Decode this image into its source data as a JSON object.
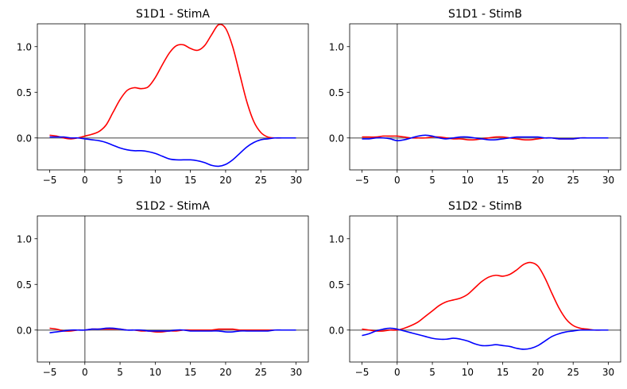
{
  "chart_data": [
    {
      "type": "line",
      "title": "S1D1 - StimA",
      "xlim": [
        -6.75,
        31.75
      ],
      "ylim": [
        -0.35,
        1.25
      ],
      "xticks": [
        -5,
        0,
        5,
        10,
        15,
        20,
        25,
        30
      ],
      "yticks": [
        0.0,
        0.5,
        1.0
      ],
      "xtick_labels": [
        "−5",
        "0",
        "5",
        "10",
        "15",
        "20",
        "25",
        "30"
      ],
      "ytick_labels": [
        "0.0",
        "0.5",
        "1.0"
      ],
      "reference_lines": {
        "vertical_x": 0,
        "horizontal_y": 0
      },
      "series": [
        {
          "color": "#ff0000",
          "x": [
            -5,
            -4,
            -3,
            -2,
            -1,
            0,
            1,
            2,
            3,
            4,
            5,
            6,
            7,
            8,
            9,
            10,
            11,
            12,
            13,
            14,
            15,
            16,
            17,
            18,
            19,
            20,
            21,
            22,
            23,
            24,
            25,
            26,
            27,
            28,
            29,
            30
          ],
          "y": [
            0.03,
            0.02,
            0.0,
            -0.01,
            0.0,
            0.02,
            0.04,
            0.07,
            0.14,
            0.28,
            0.42,
            0.52,
            0.55,
            0.54,
            0.56,
            0.66,
            0.8,
            0.93,
            1.01,
            1.02,
            0.98,
            0.96,
            1.01,
            1.13,
            1.24,
            1.2,
            1.0,
            0.7,
            0.4,
            0.18,
            0.06,
            0.01,
            0.0,
            0.0,
            0.0,
            0.0
          ]
        },
        {
          "color": "#0000ff",
          "x": [
            -5,
            -4,
            -3,
            -2,
            -1,
            0,
            1,
            2,
            3,
            4,
            5,
            6,
            7,
            8,
            9,
            10,
            11,
            12,
            13,
            14,
            15,
            16,
            17,
            18,
            19,
            20,
            21,
            22,
            23,
            24,
            25,
            26,
            27,
            28,
            29,
            30
          ],
          "y": [
            0.01,
            0.01,
            0.01,
            0.0,
            0.0,
            -0.01,
            -0.02,
            -0.03,
            -0.05,
            -0.08,
            -0.11,
            -0.13,
            -0.14,
            -0.14,
            -0.15,
            -0.17,
            -0.2,
            -0.23,
            -0.24,
            -0.24,
            -0.24,
            -0.25,
            -0.27,
            -0.3,
            -0.31,
            -0.29,
            -0.24,
            -0.17,
            -0.1,
            -0.05,
            -0.02,
            -0.01,
            0.0,
            0.0,
            0.0,
            0.0
          ]
        }
      ]
    },
    {
      "type": "line",
      "title": "S1D1 - StimB",
      "xlim": [
        -6.75,
        31.75
      ],
      "ylim": [
        -0.35,
        1.25
      ],
      "xticks": [
        -5,
        0,
        5,
        10,
        15,
        20,
        25,
        30
      ],
      "yticks": [
        0.0,
        0.5,
        1.0
      ],
      "xtick_labels": [
        "−5",
        "0",
        "5",
        "10",
        "15",
        "20",
        "25",
        "30"
      ],
      "ytick_labels": [
        "0.0",
        "0.5",
        "1.0"
      ],
      "reference_lines": {
        "vertical_x": 0,
        "horizontal_y": 0
      },
      "series": [
        {
          "color": "#ff0000",
          "x": [
            -5,
            -4,
            -3,
            -2,
            -1,
            0,
            1,
            2,
            3,
            4,
            5,
            6,
            7,
            8,
            9,
            10,
            11,
            12,
            13,
            14,
            15,
            16,
            17,
            18,
            19,
            20,
            21,
            22,
            23,
            24,
            25,
            26,
            27,
            28,
            29,
            30
          ],
          "y": [
            0.01,
            0.01,
            0.01,
            0.02,
            0.02,
            0.02,
            0.01,
            0.0,
            0.0,
            0.0,
            0.01,
            0.01,
            0.0,
            -0.01,
            -0.01,
            -0.02,
            -0.02,
            -0.01,
            0.0,
            0.01,
            0.01,
            0.0,
            -0.01,
            -0.02,
            -0.02,
            -0.01,
            0.0,
            0.0,
            -0.01,
            -0.01,
            -0.01,
            0.0,
            0.0,
            0.0,
            0.0,
            0.0
          ]
        },
        {
          "color": "#0000ff",
          "x": [
            -5,
            -4,
            -3,
            -2,
            -1,
            0,
            1,
            2,
            3,
            4,
            5,
            6,
            7,
            8,
            9,
            10,
            11,
            12,
            13,
            14,
            15,
            16,
            17,
            18,
            19,
            20,
            21,
            22,
            23,
            24,
            25,
            26,
            27,
            28,
            29,
            30
          ],
          "y": [
            -0.01,
            -0.01,
            0.0,
            0.0,
            -0.01,
            -0.03,
            -0.02,
            0.0,
            0.02,
            0.03,
            0.02,
            0.0,
            -0.01,
            0.0,
            0.01,
            0.01,
            0.0,
            -0.01,
            -0.02,
            -0.02,
            -0.01,
            0.0,
            0.01,
            0.01,
            0.01,
            0.01,
            0.0,
            0.0,
            -0.01,
            -0.01,
            -0.01,
            0.0,
            0.0,
            0.0,
            0.0,
            0.0
          ]
        }
      ]
    },
    {
      "type": "line",
      "title": "S1D2 - StimA",
      "xlim": [
        -6.75,
        31.75
      ],
      "ylim": [
        -0.35,
        1.25
      ],
      "xticks": [
        -5,
        0,
        5,
        10,
        15,
        20,
        25,
        30
      ],
      "yticks": [
        0.0,
        0.5,
        1.0
      ],
      "xtick_labels": [
        "−5",
        "0",
        "5",
        "10",
        "15",
        "20",
        "25",
        "30"
      ],
      "ytick_labels": [
        "0.0",
        "0.5",
        "1.0"
      ],
      "reference_lines": {
        "vertical_x": 0,
        "horizontal_y": 0
      },
      "series": [
        {
          "color": "#ff0000",
          "x": [
            -5,
            -4,
            -3,
            -2,
            -1,
            0,
            1,
            2,
            3,
            4,
            5,
            6,
            7,
            8,
            9,
            10,
            11,
            12,
            13,
            14,
            15,
            16,
            17,
            18,
            19,
            20,
            21,
            22,
            23,
            24,
            25,
            26,
            27,
            28,
            29,
            30
          ],
          "y": [
            0.02,
            0.01,
            -0.01,
            -0.01,
            0.0,
            0.0,
            0.01,
            0.01,
            0.01,
            0.01,
            0.01,
            0.0,
            0.0,
            -0.01,
            -0.01,
            -0.02,
            -0.02,
            -0.01,
            -0.01,
            0.0,
            0.0,
            0.0,
            0.0,
            0.0,
            0.01,
            0.01,
            0.01,
            0.0,
            0.0,
            0.0,
            0.0,
            0.0,
            0.0,
            0.0,
            0.0,
            0.0
          ]
        },
        {
          "color": "#0000ff",
          "x": [
            -5,
            -4,
            -3,
            -2,
            -1,
            0,
            1,
            2,
            3,
            4,
            5,
            6,
            7,
            8,
            9,
            10,
            11,
            12,
            13,
            14,
            15,
            16,
            17,
            18,
            19,
            20,
            21,
            22,
            23,
            24,
            25,
            26,
            27,
            28,
            29,
            30
          ],
          "y": [
            -0.03,
            -0.02,
            -0.01,
            0.0,
            0.0,
            0.0,
            0.01,
            0.01,
            0.02,
            0.02,
            0.01,
            0.0,
            0.0,
            0.0,
            -0.01,
            -0.01,
            -0.01,
            -0.01,
            0.0,
            0.0,
            -0.01,
            -0.01,
            -0.01,
            -0.01,
            -0.01,
            -0.02,
            -0.02,
            -0.01,
            -0.01,
            -0.01,
            -0.01,
            -0.01,
            0.0,
            0.0,
            0.0,
            0.0
          ]
        }
      ]
    },
    {
      "type": "line",
      "title": "S1D2 - StimB",
      "xlim": [
        -6.75,
        31.75
      ],
      "ylim": [
        -0.35,
        1.25
      ],
      "xticks": [
        -5,
        0,
        5,
        10,
        15,
        20,
        25,
        30
      ],
      "yticks": [
        0.0,
        0.5,
        1.0
      ],
      "xtick_labels": [
        "−5",
        "0",
        "5",
        "10",
        "15",
        "20",
        "25",
        "30"
      ],
      "ytick_labels": [
        "0.0",
        "0.5",
        "1.0"
      ],
      "reference_lines": {
        "vertical_x": 0,
        "horizontal_y": 0
      },
      "series": [
        {
          "color": "#ff0000",
          "x": [
            -5,
            -4,
            -3,
            -2,
            -1,
            0,
            1,
            2,
            3,
            4,
            5,
            6,
            7,
            8,
            9,
            10,
            11,
            12,
            13,
            14,
            15,
            16,
            17,
            18,
            19,
            20,
            21,
            22,
            23,
            24,
            25,
            26,
            27,
            28,
            29,
            30
          ],
          "y": [
            0.01,
            0.0,
            -0.01,
            -0.01,
            0.0,
            0.0,
            0.02,
            0.05,
            0.09,
            0.15,
            0.21,
            0.27,
            0.31,
            0.33,
            0.35,
            0.39,
            0.46,
            0.53,
            0.58,
            0.6,
            0.59,
            0.61,
            0.66,
            0.72,
            0.74,
            0.7,
            0.57,
            0.4,
            0.24,
            0.12,
            0.05,
            0.02,
            0.01,
            0.0,
            0.0,
            0.0
          ]
        },
        {
          "color": "#0000ff",
          "x": [
            -5,
            -4,
            -3,
            -2,
            -1,
            0,
            1,
            2,
            3,
            4,
            5,
            6,
            7,
            8,
            9,
            10,
            11,
            12,
            13,
            14,
            15,
            16,
            17,
            18,
            19,
            20,
            21,
            22,
            23,
            24,
            25,
            26,
            27,
            28,
            29,
            30
          ],
          "y": [
            -0.06,
            -0.04,
            -0.01,
            0.01,
            0.02,
            0.01,
            -0.01,
            -0.03,
            -0.05,
            -0.07,
            -0.09,
            -0.1,
            -0.1,
            -0.09,
            -0.1,
            -0.12,
            -0.15,
            -0.17,
            -0.17,
            -0.16,
            -0.17,
            -0.18,
            -0.2,
            -0.21,
            -0.2,
            -0.17,
            -0.12,
            -0.07,
            -0.04,
            -0.02,
            -0.01,
            0.0,
            0.0,
            0.0,
            0.0,
            0.0
          ]
        }
      ]
    }
  ]
}
